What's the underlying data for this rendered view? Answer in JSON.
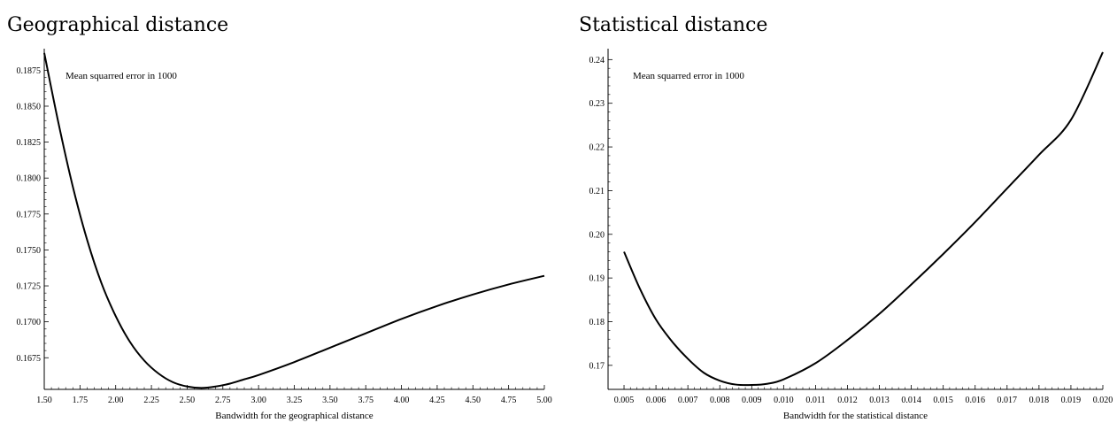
{
  "panels": [
    {
      "title": "Geographical distance"
    },
    {
      "title": "Statistical distance"
    }
  ],
  "chart_data": [
    {
      "type": "line",
      "title": "Geographical distance",
      "annotation": "Mean squarred error in 1000",
      "xlabel": "Bandwidth for the geographical distance",
      "ylabel": "",
      "xlim": [
        1.5,
        5.0
      ],
      "ylim": [
        0.1653,
        0.189
      ],
      "x_ticks": [
        1.5,
        1.75,
        2.0,
        2.25,
        2.5,
        2.75,
        3.0,
        3.25,
        3.5,
        3.75,
        4.0,
        4.25,
        4.5,
        4.75,
        5.0
      ],
      "x_tick_labels": [
        "1.50",
        "1.75",
        "2.00",
        "2.25",
        "2.50",
        "2.75",
        "3.00",
        "3.25",
        "3.50",
        "3.75",
        "4.00",
        "4.25",
        "4.50",
        "4.75",
        "5.00"
      ],
      "y_ticks": [
        0.1675,
        0.17,
        0.1725,
        0.175,
        0.1775,
        0.18,
        0.1825,
        0.185,
        0.1875
      ],
      "y_tick_labels": [
        "0.1675",
        "0.1700",
        "0.1725",
        "0.1750",
        "0.1775",
        "0.1800",
        "0.1825",
        "0.1850",
        "0.1875"
      ],
      "grid": false,
      "series": [
        {
          "color": "#000000",
          "x": [
            1.5,
            1.6,
            1.7,
            1.8,
            1.9,
            2.0,
            2.1,
            2.2,
            2.3,
            2.4,
            2.5,
            2.6,
            2.7,
            2.8,
            2.9,
            3.0,
            3.25,
            3.5,
            3.75,
            4.0,
            4.25,
            4.5,
            4.75,
            5.0
          ],
          "y": [
            0.1887,
            0.1838,
            0.1794,
            0.1757,
            0.1727,
            0.1704,
            0.1686,
            0.1673,
            0.1664,
            0.1658,
            0.1655,
            0.1654,
            0.1655,
            0.1657,
            0.166,
            0.1663,
            0.1672,
            0.1682,
            0.1692,
            0.1702,
            0.1711,
            0.1719,
            0.1726,
            0.1732
          ]
        }
      ]
    },
    {
      "type": "line",
      "title": "Statistical distance",
      "annotation": "Mean squarred error in 1000",
      "xlabel": "Bandwidth for the statistical distance",
      "ylabel": "",
      "xlim": [
        0.0045,
        0.02
      ],
      "ylim": [
        0.1645,
        0.2425
      ],
      "x_ticks": [
        0.005,
        0.006,
        0.007,
        0.008,
        0.009,
        0.01,
        0.011,
        0.012,
        0.013,
        0.014,
        0.015,
        0.016,
        0.017,
        0.018,
        0.019,
        0.02
      ],
      "x_tick_labels": [
        "0.005",
        "0.006",
        "0.007",
        "0.008",
        "0.009",
        "0.010",
        "0.011",
        "0.012",
        "0.013",
        "0.014",
        "0.015",
        "0.016",
        "0.017",
        "0.018",
        "0.019",
        "0.020"
      ],
      "y_ticks": [
        0.17,
        0.18,
        0.19,
        0.2,
        0.21,
        0.22,
        0.23,
        0.24
      ],
      "y_tick_labels": [
        "0.17",
        "0.18",
        "0.19",
        "0.20",
        "0.21",
        "0.22",
        "0.23",
        "0.24"
      ],
      "grid": false,
      "series": [
        {
          "color": "#000000",
          "x": [
            0.005,
            0.0055,
            0.006,
            0.0065,
            0.007,
            0.0075,
            0.008,
            0.0085,
            0.009,
            0.0095,
            0.01,
            0.011,
            0.012,
            0.013,
            0.014,
            0.015,
            0.016,
            0.017,
            0.018,
            0.019,
            0.02
          ],
          "y": [
            0.196,
            0.1875,
            0.1805,
            0.1755,
            0.1715,
            0.1683,
            0.1665,
            0.1656,
            0.1655,
            0.1658,
            0.1668,
            0.1705,
            0.1758,
            0.1818,
            0.1885,
            0.1955,
            0.2028,
            0.2105,
            0.2182,
            0.2262,
            0.2417
          ]
        }
      ]
    }
  ]
}
